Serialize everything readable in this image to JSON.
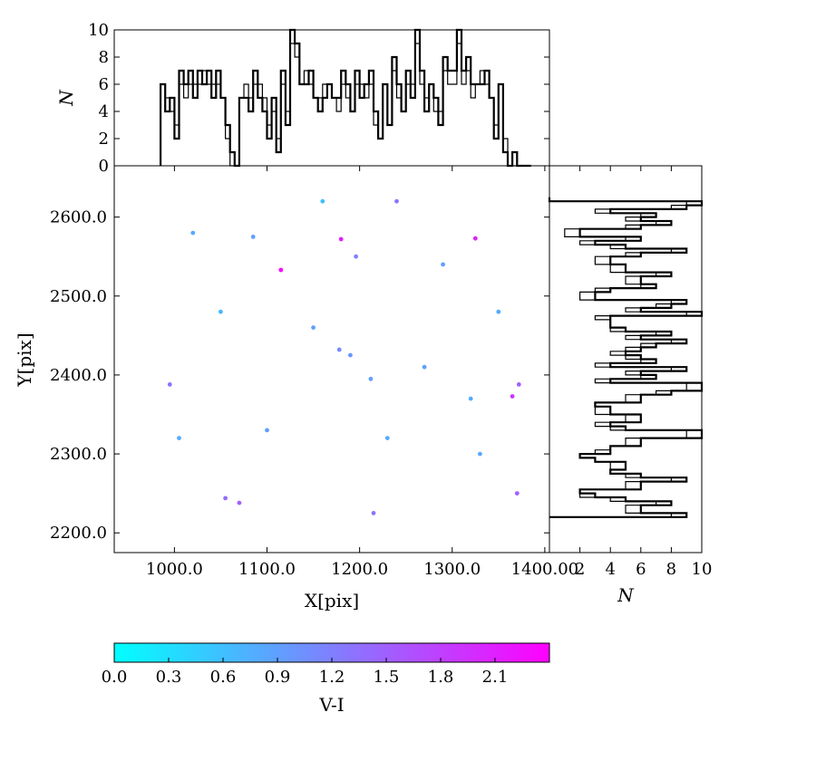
{
  "chart_data": [
    {
      "panel": "top-histogram",
      "type": "bar",
      "ylabel": "N",
      "ylim": [
        0,
        10
      ],
      "yticks": [
        "0",
        "2",
        "4",
        "6",
        "8",
        "10"
      ],
      "xlim": [
        935,
        1405
      ],
      "bin_edges": [
        985,
        990,
        995,
        1000,
        1005,
        1010,
        1015,
        1020,
        1025,
        1030,
        1035,
        1040,
        1045,
        1050,
        1055,
        1060,
        1065,
        1070,
        1075,
        1080,
        1085,
        1090,
        1095,
        1100,
        1105,
        1110,
        1115,
        1120,
        1125,
        1130,
        1135,
        1140,
        1145,
        1150,
        1155,
        1160,
        1165,
        1170,
        1175,
        1180,
        1185,
        1190,
        1195,
        1200,
        1205,
        1210,
        1215,
        1220,
        1225,
        1230,
        1235,
        1240,
        1245,
        1250,
        1255,
        1260,
        1265,
        1270,
        1275,
        1280,
        1285,
        1290,
        1295,
        1300,
        1305,
        1310,
        1315,
        1320,
        1325,
        1330,
        1335,
        1340,
        1345,
        1350,
        1355,
        1360,
        1365,
        1370,
        1375,
        1380,
        1385
      ],
      "counts": [
        6,
        4,
        5,
        2,
        7,
        6,
        7,
        5,
        7,
        6,
        7,
        5,
        7,
        5,
        3,
        1,
        0,
        5,
        5,
        4,
        7,
        5,
        4,
        2,
        5,
        1,
        7,
        3,
        10,
        9,
        6,
        6,
        7,
        5,
        4,
        5,
        6,
        5,
        5,
        7,
        6,
        4,
        7,
        5,
        6,
        7,
        4,
        2,
        6,
        3,
        8,
        6,
        4,
        7,
        5,
        10,
        7,
        4,
        6,
        5,
        3,
        8,
        7,
        7,
        10,
        7,
        8,
        6,
        6,
        6,
        7,
        5,
        2,
        6,
        1,
        0,
        1,
        0,
        0,
        0
      ],
      "counts_inner": [
        6,
        5,
        4,
        3,
        6,
        5,
        6,
        6,
        6,
        7,
        6,
        6,
        6,
        5,
        2,
        0,
        0,
        5,
        6,
        5,
        6,
        6,
        5,
        3,
        4,
        2,
        6,
        4,
        9,
        8,
        6,
        7,
        6,
        5,
        5,
        6,
        6,
        5,
        4,
        6,
        5,
        4,
        6,
        6,
        5,
        6,
        3,
        2,
        6,
        3,
        7,
        5,
        4,
        6,
        6,
        9,
        6,
        5,
        6,
        4,
        4,
        7,
        6,
        6,
        9,
        6,
        7,
        5,
        6,
        7,
        6,
        5,
        3,
        6,
        2,
        0,
        0,
        0,
        0,
        0
      ]
    },
    {
      "panel": "scatter",
      "type": "scatter",
      "xlabel": "X[pix]",
      "ylabel": "Y[pix]",
      "xlim": [
        935,
        1405
      ],
      "ylim": [
        2175,
        2665
      ],
      "xticks": [
        "1000.0",
        "1100.0",
        "1200.0",
        "1300.0",
        "1400.00"
      ],
      "yticks": [
        "2200.0",
        "2300.0",
        "2400.0",
        "2500.0",
        "2600.0"
      ],
      "color_by": "V-I",
      "points": [
        [
          1050,
          2480,
          0.7
        ],
        [
          1115,
          2533,
          2.35
        ],
        [
          1180,
          2572,
          2.1
        ],
        [
          1325,
          2573,
          2.1
        ],
        [
          1365,
          2373,
          1.9
        ],
        [
          1372,
          2388,
          1.5
        ],
        [
          995,
          2388,
          1.3
        ],
        [
          1178,
          2432,
          1.1
        ],
        [
          1190,
          2425,
          1.0
        ],
        [
          1055,
          2244,
          1.4
        ],
        [
          1070,
          2238,
          1.5
        ],
        [
          1215,
          2225,
          1.3
        ],
        [
          1240,
          2620,
          1.3
        ],
        [
          1196,
          2550,
          1.2
        ],
        [
          1370,
          2250,
          1.5
        ],
        [
          1212,
          2395,
          0.9
        ],
        [
          1320,
          2370,
          0.8
        ],
        [
          1005,
          2320,
          0.8
        ],
        [
          1150,
          2460,
          0.9
        ],
        [
          1270,
          2410,
          0.9
        ],
        [
          1330,
          2300,
          0.8
        ],
        [
          1020,
          2580,
          0.8
        ],
        [
          1290,
          2540,
          0.9
        ],
        [
          1350,
          2480,
          0.8
        ],
        [
          1100,
          2330,
          0.9
        ],
        [
          1230,
          2320,
          0.8
        ],
        [
          1160,
          2620,
          0.6
        ],
        [
          1085,
          2575,
          0.9
        ]
      ],
      "colorbar": {
        "label": "V-I",
        "range": [
          0.0,
          2.4
        ],
        "ticks": [
          "0.0",
          "0.3",
          "0.6",
          "0.9",
          "1.2",
          "1.5",
          "1.8",
          "2.1"
        ],
        "cmap": [
          "#00ffff",
          "#ff00ff"
        ]
      }
    },
    {
      "panel": "right-histogram",
      "type": "bar",
      "orientation": "horizontal",
      "xlabel": "N",
      "xlim": [
        0,
        10
      ],
      "xticks": [
        "2",
        "4",
        "6",
        "8",
        "10"
      ],
      "ylim": [
        2175,
        2665
      ],
      "bin_edges": [
        2220,
        2225,
        2230,
        2235,
        2240,
        2245,
        2250,
        2255,
        2260,
        2265,
        2270,
        2275,
        2280,
        2285,
        2290,
        2295,
        2300,
        2305,
        2310,
        2315,
        2320,
        2325,
        2330,
        2335,
        2340,
        2345,
        2350,
        2355,
        2360,
        2365,
        2370,
        2375,
        2380,
        2385,
        2390,
        2395,
        2400,
        2405,
        2410,
        2415,
        2420,
        2425,
        2430,
        2435,
        2440,
        2445,
        2450,
        2455,
        2460,
        2465,
        2470,
        2475,
        2480,
        2485,
        2490,
        2495,
        2500,
        2505,
        2510,
        2515,
        2520,
        2525,
        2530,
        2535,
        2540,
        2545,
        2550,
        2555,
        2560,
        2565,
        2570,
        2575,
        2580,
        2585,
        2590,
        2595,
        2600,
        2605,
        2610,
        2615,
        2620,
        2625
      ],
      "counts": [
        9,
        6,
        6,
        8,
        5,
        3,
        2,
        6,
        6,
        9,
        6,
        4,
        5,
        5,
        3,
        2,
        4,
        4,
        6,
        6,
        10,
        10,
        5,
        4,
        6,
        6,
        4,
        4,
        3,
        6,
        6,
        8,
        10,
        10,
        4,
        7,
        6,
        9,
        4,
        7,
        6,
        5,
        6,
        7,
        9,
        6,
        8,
        5,
        4,
        4,
        4,
        10,
        6,
        8,
        9,
        3,
        3,
        4,
        7,
        6,
        6,
        8,
        5,
        5,
        4,
        4,
        6,
        9,
        5,
        3,
        6,
        2,
        2,
        6,
        8,
        6,
        7,
        4,
        9,
        10,
        0
      ],
      "counts_inner": [
        8,
        5,
        5,
        7,
        4,
        2,
        2,
        5,
        5,
        8,
        5,
        4,
        4,
        4,
        3,
        2,
        3,
        4,
        5,
        5,
        9,
        9,
        4,
        3,
        5,
        5,
        3,
        3,
        3,
        5,
        5,
        7,
        9,
        9,
        3,
        6,
        5,
        8,
        3,
        6,
        5,
        4,
        5,
        6,
        8,
        5,
        7,
        4,
        4,
        4,
        3,
        9,
        5,
        7,
        8,
        2,
        2,
        3,
        6,
        5,
        5,
        7,
        4,
        4,
        3,
        3,
        5,
        8,
        4,
        2,
        5,
        1,
        1,
        5,
        7,
        5,
        6,
        3,
        8,
        9,
        0
      ]
    }
  ]
}
